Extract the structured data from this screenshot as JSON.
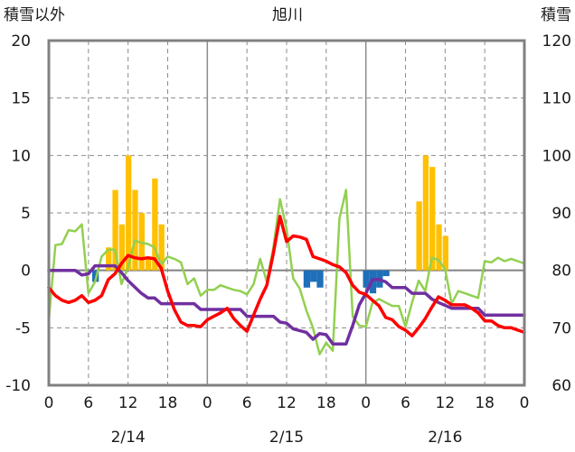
{
  "chart_data": {
    "type": "bar+line",
    "title": "旭川",
    "y_left_label": "積雪以外",
    "y_right_label": "積雪",
    "y_left_range": [
      -10,
      20
    ],
    "y_right_range": [
      60,
      120
    ],
    "y_left_ticks": [
      "20",
      "15",
      "10",
      "5",
      "0",
      "-5",
      "-10"
    ],
    "y_right_ticks": [
      "120",
      "110",
      "100",
      "90",
      "80",
      "70",
      "60"
    ],
    "x_tick_labels": [
      "0",
      "6",
      "12",
      "18",
      "0",
      "6",
      "12",
      "18",
      "0",
      "6",
      "12",
      "18",
      "0"
    ],
    "date_labels": [
      "2/14",
      "2/15",
      "2/16"
    ],
    "x_range_hours": [
      0,
      72
    ],
    "grid": "dashed vertical every 6h, solid at day boundaries, horizontal dashed every 5",
    "colors": {
      "bars_positive": "#ffc000",
      "bars_negative": "#1f6fba",
      "red_line": "#ff0000",
      "green_line": "#92d050",
      "purple_line": "#7030a0",
      "zero_line": "#808080"
    },
    "bars_yellow": [
      {
        "hour": 9,
        "value": 2
      },
      {
        "hour": 10,
        "value": 7
      },
      {
        "hour": 11,
        "value": 4
      },
      {
        "hour": 12,
        "value": 10
      },
      {
        "hour": 13,
        "value": 7
      },
      {
        "hour": 14,
        "value": 5
      },
      {
        "hour": 15,
        "value": 1
      },
      {
        "hour": 16,
        "value": 8
      },
      {
        "hour": 17,
        "value": 4
      },
      {
        "hour": 56,
        "value": 6
      },
      {
        "hour": 57,
        "value": 10
      },
      {
        "hour": 58,
        "value": 9
      },
      {
        "hour": 59,
        "value": 4
      },
      {
        "hour": 60,
        "value": 3
      }
    ],
    "bars_blue": [
      {
        "hour": 7,
        "value": -1
      },
      {
        "hour": 39,
        "value": -1.5
      },
      {
        "hour": 40,
        "value": -1
      },
      {
        "hour": 41,
        "value": -1.5
      },
      {
        "hour": 48,
        "value": -1.5
      },
      {
        "hour": 49,
        "value": -2
      },
      {
        "hour": 50,
        "value": -1.5
      },
      {
        "hour": 51,
        "value": -0.5
      }
    ],
    "series_red": [
      [
        0,
        -1.5
      ],
      [
        1,
        -2.2
      ],
      [
        2,
        -2.6
      ],
      [
        3,
        -2.8
      ],
      [
        4,
        -2.6
      ],
      [
        5,
        -2.2
      ],
      [
        6,
        -2.8
      ],
      [
        7,
        -2.6
      ],
      [
        8,
        -2.2
      ],
      [
        9,
        -0.8
      ],
      [
        10,
        -0.3
      ],
      [
        11,
        0.6
      ],
      [
        12,
        1.3
      ],
      [
        13,
        1.1
      ],
      [
        14,
        1.0
      ],
      [
        15,
        1.1
      ],
      [
        16,
        1.0
      ],
      [
        17,
        0.2
      ],
      [
        18,
        -1.8
      ],
      [
        19,
        -3.4
      ],
      [
        20,
        -4.5
      ],
      [
        21,
        -4.8
      ],
      [
        22,
        -4.8
      ],
      [
        23,
        -4.9
      ],
      [
        24,
        -4.3
      ],
      [
        25,
        -4.0
      ],
      [
        26,
        -3.7
      ],
      [
        27,
        -3.3
      ],
      [
        28,
        -4.2
      ],
      [
        29,
        -4.8
      ],
      [
        30,
        -5.3
      ],
      [
        31,
        -3.9
      ],
      [
        32,
        -2.5
      ],
      [
        33,
        -1.3
      ],
      [
        34,
        1.5
      ],
      [
        35,
        4.7
      ],
      [
        36,
        2.5
      ],
      [
        37,
        3.0
      ],
      [
        38,
        2.9
      ],
      [
        39,
        2.7
      ],
      [
        40,
        1.2
      ],
      [
        41,
        1.0
      ],
      [
        42,
        0.8
      ],
      [
        43,
        0.5
      ],
      [
        44,
        0.3
      ],
      [
        45,
        -0.2
      ],
      [
        46,
        -1.3
      ],
      [
        47,
        -1.9
      ],
      [
        48,
        -2.1
      ],
      [
        49,
        -2.6
      ],
      [
        50,
        -3.1
      ],
      [
        51,
        -4.1
      ],
      [
        52,
        -4.3
      ],
      [
        53,
        -4.9
      ],
      [
        54,
        -5.2
      ],
      [
        55,
        -5.7
      ],
      [
        56,
        -5.0
      ],
      [
        57,
        -4.2
      ],
      [
        58,
        -3.2
      ],
      [
        59,
        -2.3
      ],
      [
        60,
        -2.6
      ],
      [
        61,
        -3.0
      ],
      [
        62,
        -3.0
      ],
      [
        63,
        -3.0
      ],
      [
        64,
        -3.3
      ],
      [
        65,
        -3.7
      ],
      [
        66,
        -4.4
      ],
      [
        67,
        -4.4
      ],
      [
        68,
        -4.8
      ],
      [
        69,
        -5.0
      ],
      [
        70,
        -5.0
      ],
      [
        71,
        -5.2
      ],
      [
        72,
        -5.4
      ]
    ],
    "series_green": [
      [
        0,
        -4.3
      ],
      [
        1,
        2.2
      ],
      [
        2,
        2.3
      ],
      [
        3,
        3.5
      ],
      [
        4,
        3.4
      ],
      [
        5,
        4.0
      ],
      [
        6,
        -2.0
      ],
      [
        7,
        -1.0
      ],
      [
        8,
        1.2
      ],
      [
        9,
        1.8
      ],
      [
        10,
        1.8
      ],
      [
        11,
        -1.2
      ],
      [
        12,
        0.3
      ],
      [
        13,
        2.6
      ],
      [
        14,
        2.4
      ],
      [
        15,
        2.3
      ],
      [
        16,
        2.0
      ],
      [
        17,
        0.5
      ],
      [
        18,
        1.2
      ],
      [
        19,
        1.0
      ],
      [
        20,
        0.7
      ],
      [
        21,
        -1.2
      ],
      [
        22,
        -0.7
      ],
      [
        23,
        -2.2
      ],
      [
        24,
        -1.7
      ],
      [
        25,
        -1.7
      ],
      [
        26,
        -1.3
      ],
      [
        27,
        -1.5
      ],
      [
        28,
        -1.7
      ],
      [
        29,
        -1.8
      ],
      [
        30,
        -2.1
      ],
      [
        31,
        -1.2
      ],
      [
        32,
        1.0
      ],
      [
        33,
        -1.0
      ],
      [
        34,
        2.0
      ],
      [
        35,
        6.2
      ],
      [
        36,
        3.6
      ],
      [
        37,
        -0.7
      ],
      [
        38,
        -1.6
      ],
      [
        39,
        -3.5
      ],
      [
        40,
        -5.0
      ],
      [
        41,
        -7.3
      ],
      [
        42,
        -6.3
      ],
      [
        43,
        -7.0
      ],
      [
        44,
        4.5
      ],
      [
        45,
        7.0
      ],
      [
        46,
        -4.0
      ],
      [
        47,
        -4.8
      ],
      [
        48,
        -4.9
      ],
      [
        49,
        -2.8
      ],
      [
        50,
        -2.5
      ],
      [
        51,
        -2.8
      ],
      [
        52,
        -3.1
      ],
      [
        53,
        -3.1
      ],
      [
        54,
        -4.9
      ],
      [
        55,
        -2.8
      ],
      [
        56,
        -0.9
      ],
      [
        57,
        -1.8
      ],
      [
        58,
        1.1
      ],
      [
        59,
        0.9
      ],
      [
        60,
        0.1
      ],
      [
        61,
        -2.9
      ],
      [
        62,
        -1.8
      ],
      [
        63,
        -2.0
      ],
      [
        64,
        -2.2
      ],
      [
        65,
        -2.4
      ],
      [
        66,
        0.8
      ],
      [
        67,
        0.7
      ],
      [
        68,
        1.1
      ],
      [
        69,
        0.8
      ],
      [
        70,
        1.0
      ],
      [
        71,
        0.8
      ],
      [
        72,
        0.6
      ]
    ],
    "series_purple": [
      [
        0,
        0
      ],
      [
        4,
        0
      ],
      [
        5,
        -0.4
      ],
      [
        6,
        -0.3
      ],
      [
        7,
        0.4
      ],
      [
        10,
        0.4
      ],
      [
        11,
        -0.2
      ],
      [
        12,
        -0.9
      ],
      [
        14,
        -2.0
      ],
      [
        15,
        -2.4
      ],
      [
        16,
        -2.4
      ],
      [
        17,
        -2.9
      ],
      [
        22,
        -2.9
      ],
      [
        23,
        -3.4
      ],
      [
        29,
        -3.4
      ],
      [
        30,
        -4.0
      ],
      [
        34,
        -4.0
      ],
      [
        35,
        -4.5
      ],
      [
        36,
        -4.6
      ],
      [
        37,
        -5.1
      ],
      [
        39,
        -5.4
      ],
      [
        40,
        -6.0
      ],
      [
        41,
        -5.5
      ],
      [
        42,
        -5.6
      ],
      [
        43,
        -6.4
      ],
      [
        45,
        -6.4
      ],
      [
        46,
        -4.8
      ],
      [
        47,
        -3.0
      ],
      [
        48,
        -2.0
      ],
      [
        49,
        -0.8
      ],
      [
        50,
        -0.8
      ],
      [
        51,
        -1.0
      ],
      [
        52,
        -1.5
      ],
      [
        54,
        -1.5
      ],
      [
        55,
        -2.0
      ],
      [
        57,
        -2.0
      ],
      [
        58,
        -2.5
      ],
      [
        59,
        -2.8
      ],
      [
        61,
        -3.3
      ],
      [
        65,
        -3.3
      ],
      [
        66,
        -3.9
      ],
      [
        72,
        -3.9
      ]
    ]
  }
}
